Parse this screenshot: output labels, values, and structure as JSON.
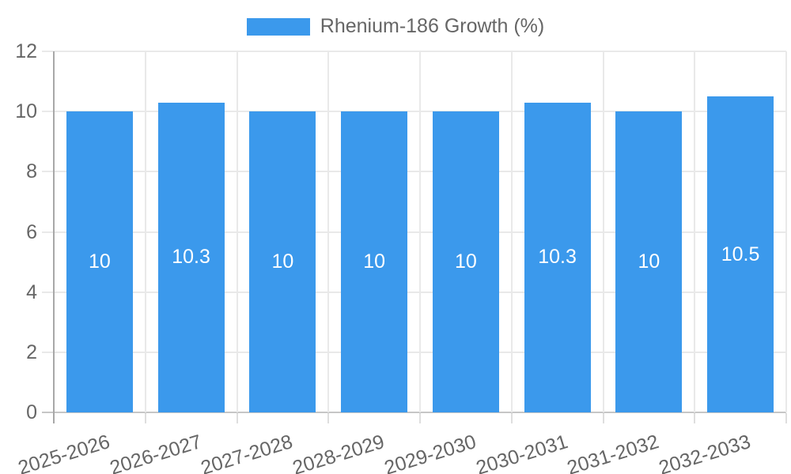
{
  "chart_data": {
    "type": "bar",
    "title": "",
    "legend": {
      "label": "Rhenium-186 Growth (%)",
      "position": "top-center"
    },
    "categories": [
      "2025-2026",
      "2026-2027",
      "2027-2028",
      "2028-2029",
      "2029-2030",
      "2030-2031",
      "2031-2032",
      "2032-2033"
    ],
    "values": [
      10,
      10.3,
      10,
      10,
      10,
      10.3,
      10,
      10.5
    ],
    "y_ticks": [
      0,
      2,
      4,
      6,
      8,
      10,
      12
    ],
    "ylim": [
      0,
      12
    ],
    "xlabel": "",
    "ylabel": "",
    "grid": true,
    "colors": {
      "bar": "#3b99ec",
      "bar_label_text": "#ffffff",
      "axis_text": "#666666",
      "gridline": "#e9e9e9",
      "axis_line": "#a8a8a8",
      "baseline": "#c6c6c6",
      "tick": "#dedede",
      "background": "#ffffff"
    }
  }
}
